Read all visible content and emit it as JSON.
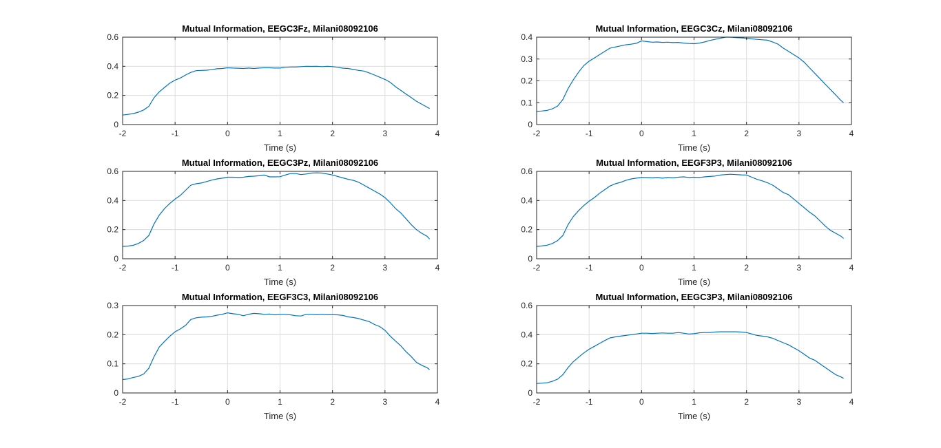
{
  "figure": {
    "background": "#ffffff",
    "line_color": "#0072bd",
    "grid": true
  },
  "chart_data": [
    {
      "type": "line",
      "title": "Mutual Information, EEGC3Fz, Milani08092106",
      "xlabel": "Time (s)",
      "ylabel": "",
      "xlim": [
        -2,
        4
      ],
      "ylim": [
        0,
        0.6
      ],
      "xticks": [
        "-2",
        "-1",
        "0",
        "1",
        "2",
        "3",
        "4"
      ],
      "yticks": [
        "0",
        "0.2",
        "0.4",
        "0.6"
      ],
      "series": [
        {
          "x": [
            -2.0,
            -1.9,
            -1.8,
            -1.7,
            -1.6,
            -1.5,
            -1.4,
            -1.3,
            -1.2,
            -1.1,
            -1.0,
            -0.9,
            -0.8,
            -0.7,
            -0.6,
            -0.5,
            -0.4,
            -0.3,
            -0.2,
            -0.1,
            0.0,
            0.1,
            0.2,
            0.3,
            0.4,
            0.5,
            0.6,
            0.7,
            0.8,
            0.9,
            1.0,
            1.1,
            1.2,
            1.3,
            1.4,
            1.5,
            1.6,
            1.7,
            1.8,
            1.9,
            2.0,
            2.1,
            2.2,
            2.3,
            2.4,
            2.5,
            2.6,
            2.7,
            2.8,
            2.9,
            3.0,
            3.1,
            3.2,
            3.3,
            3.4,
            3.5,
            3.6,
            3.7,
            3.8,
            3.85
          ],
          "y": [
            0.065,
            0.07,
            0.075,
            0.085,
            0.1,
            0.125,
            0.185,
            0.225,
            0.255,
            0.285,
            0.305,
            0.32,
            0.34,
            0.358,
            0.37,
            0.372,
            0.373,
            0.377,
            0.383,
            0.385,
            0.39,
            0.388,
            0.387,
            0.385,
            0.388,
            0.385,
            0.388,
            0.39,
            0.39,
            0.388,
            0.388,
            0.393,
            0.395,
            0.395,
            0.398,
            0.4,
            0.399,
            0.4,
            0.398,
            0.4,
            0.398,
            0.393,
            0.387,
            0.385,
            0.378,
            0.372,
            0.367,
            0.355,
            0.34,
            0.325,
            0.31,
            0.29,
            0.26,
            0.235,
            0.21,
            0.185,
            0.16,
            0.14,
            0.12,
            0.11
          ]
        }
      ]
    },
    {
      "type": "line",
      "title": "Mutual Information, EEGC3Cz, Milani08092106",
      "xlabel": "Time (s)",
      "ylabel": "",
      "xlim": [
        -2,
        4
      ],
      "ylim": [
        0,
        0.4
      ],
      "xticks": [
        "-2",
        "-1",
        "0",
        "1",
        "2",
        "3",
        "4"
      ],
      "yticks": [
        "0",
        "0.1",
        "0.2",
        "0.3",
        "0.4"
      ],
      "series": [
        {
          "x": [
            -2.0,
            -1.9,
            -1.8,
            -1.7,
            -1.6,
            -1.5,
            -1.4,
            -1.3,
            -1.2,
            -1.1,
            -1.0,
            -0.9,
            -0.8,
            -0.7,
            -0.6,
            -0.5,
            -0.4,
            -0.3,
            -0.2,
            -0.1,
            0.0,
            0.1,
            0.2,
            0.3,
            0.4,
            0.5,
            0.6,
            0.7,
            0.8,
            0.9,
            1.0,
            1.1,
            1.2,
            1.3,
            1.4,
            1.5,
            1.6,
            1.7,
            1.8,
            1.9,
            2.0,
            2.1,
            2.2,
            2.3,
            2.4,
            2.5,
            2.6,
            2.7,
            2.8,
            2.9,
            3.0,
            3.1,
            3.2,
            3.3,
            3.4,
            3.5,
            3.6,
            3.7,
            3.8,
            3.85
          ],
          "y": [
            0.06,
            0.062,
            0.065,
            0.072,
            0.085,
            0.115,
            0.165,
            0.205,
            0.24,
            0.27,
            0.29,
            0.305,
            0.32,
            0.335,
            0.35,
            0.355,
            0.36,
            0.365,
            0.368,
            0.372,
            0.383,
            0.38,
            0.377,
            0.378,
            0.376,
            0.377,
            0.375,
            0.376,
            0.373,
            0.371,
            0.37,
            0.373,
            0.378,
            0.385,
            0.39,
            0.395,
            0.4,
            0.4,
            0.398,
            0.397,
            0.395,
            0.392,
            0.39,
            0.388,
            0.386,
            0.378,
            0.368,
            0.35,
            0.335,
            0.32,
            0.305,
            0.285,
            0.26,
            0.235,
            0.21,
            0.185,
            0.16,
            0.135,
            0.11,
            0.1
          ]
        }
      ]
    },
    {
      "type": "line",
      "title": "Mutual Information, EEGC3Pz, Milani08092106",
      "xlabel": "Time (s)",
      "ylabel": "",
      "xlim": [
        -2,
        4
      ],
      "ylim": [
        0,
        0.6
      ],
      "xticks": [
        "-2",
        "-1",
        "0",
        "1",
        "2",
        "3",
        "4"
      ],
      "yticks": [
        "0",
        "0.2",
        "0.4",
        "0.6"
      ],
      "series": [
        {
          "x": [
            -2.0,
            -1.9,
            -1.8,
            -1.7,
            -1.6,
            -1.5,
            -1.4,
            -1.3,
            -1.2,
            -1.1,
            -1.0,
            -0.9,
            -0.8,
            -0.7,
            -0.6,
            -0.5,
            -0.4,
            -0.3,
            -0.2,
            -0.1,
            0.0,
            0.1,
            0.2,
            0.3,
            0.4,
            0.5,
            0.6,
            0.7,
            0.8,
            0.9,
            1.0,
            1.1,
            1.2,
            1.3,
            1.4,
            1.5,
            1.6,
            1.7,
            1.8,
            1.9,
            2.0,
            2.1,
            2.2,
            2.3,
            2.4,
            2.5,
            2.6,
            2.7,
            2.8,
            2.9,
            3.0,
            3.1,
            3.2,
            3.3,
            3.4,
            3.5,
            3.6,
            3.7,
            3.8,
            3.85
          ],
          "y": [
            0.085,
            0.087,
            0.092,
            0.105,
            0.125,
            0.16,
            0.24,
            0.3,
            0.345,
            0.38,
            0.41,
            0.435,
            0.47,
            0.505,
            0.515,
            0.52,
            0.53,
            0.54,
            0.548,
            0.553,
            0.56,
            0.56,
            0.558,
            0.56,
            0.565,
            0.567,
            0.57,
            0.575,
            0.562,
            0.562,
            0.563,
            0.575,
            0.585,
            0.585,
            0.578,
            0.582,
            0.588,
            0.59,
            0.588,
            0.582,
            0.575,
            0.565,
            0.555,
            0.545,
            0.538,
            0.525,
            0.505,
            0.485,
            0.465,
            0.445,
            0.42,
            0.385,
            0.345,
            0.315,
            0.275,
            0.235,
            0.2,
            0.175,
            0.155,
            0.135
          ]
        }
      ]
    },
    {
      "type": "line",
      "title": "Mutual Information, EEGF3P3, Milani08092106",
      "xlabel": "Time (s)",
      "ylabel": "",
      "xlim": [
        -2,
        4
      ],
      "ylim": [
        0,
        0.6
      ],
      "xticks": [
        "-2",
        "-1",
        "0",
        "1",
        "2",
        "3",
        "4"
      ],
      "yticks": [
        "0",
        "0.2",
        "0.4",
        "0.6"
      ],
      "series": [
        {
          "x": [
            -2.0,
            -1.9,
            -1.8,
            -1.7,
            -1.6,
            -1.5,
            -1.4,
            -1.3,
            -1.2,
            -1.1,
            -1.0,
            -0.9,
            -0.8,
            -0.7,
            -0.6,
            -0.5,
            -0.4,
            -0.3,
            -0.2,
            -0.1,
            0.0,
            0.1,
            0.2,
            0.3,
            0.4,
            0.5,
            0.6,
            0.7,
            0.8,
            0.9,
            1.0,
            1.1,
            1.2,
            1.3,
            1.4,
            1.5,
            1.6,
            1.7,
            1.8,
            1.9,
            2.0,
            2.1,
            2.2,
            2.3,
            2.4,
            2.5,
            2.6,
            2.7,
            2.8,
            2.9,
            3.0,
            3.1,
            3.2,
            3.3,
            3.4,
            3.5,
            3.6,
            3.7,
            3.8,
            3.85
          ],
          "y": [
            0.085,
            0.088,
            0.093,
            0.105,
            0.125,
            0.16,
            0.235,
            0.29,
            0.33,
            0.365,
            0.395,
            0.42,
            0.45,
            0.475,
            0.5,
            0.515,
            0.525,
            0.538,
            0.548,
            0.553,
            0.558,
            0.557,
            0.555,
            0.558,
            0.553,
            0.558,
            0.555,
            0.56,
            0.562,
            0.558,
            0.56,
            0.558,
            0.562,
            0.565,
            0.568,
            0.575,
            0.578,
            0.58,
            0.578,
            0.576,
            0.575,
            0.56,
            0.545,
            0.535,
            0.522,
            0.505,
            0.48,
            0.455,
            0.44,
            0.41,
            0.38,
            0.35,
            0.32,
            0.295,
            0.26,
            0.225,
            0.195,
            0.175,
            0.155,
            0.14
          ]
        }
      ]
    },
    {
      "type": "line",
      "title": "Mutual Information, EEGF3C3, Milani08092106",
      "xlabel": "Time (s)",
      "ylabel": "",
      "xlim": [
        -2,
        4
      ],
      "ylim": [
        0,
        0.3
      ],
      "xticks": [
        "-2",
        "-1",
        "0",
        "1",
        "2",
        "3",
        "4"
      ],
      "yticks": [
        "0",
        "0.1",
        "0.2",
        "0.3"
      ],
      "series": [
        {
          "x": [
            -2.0,
            -1.9,
            -1.8,
            -1.7,
            -1.6,
            -1.5,
            -1.4,
            -1.3,
            -1.2,
            -1.1,
            -1.0,
            -0.9,
            -0.8,
            -0.7,
            -0.6,
            -0.5,
            -0.4,
            -0.3,
            -0.2,
            -0.1,
            0.0,
            0.1,
            0.2,
            0.3,
            0.4,
            0.5,
            0.6,
            0.7,
            0.8,
            0.9,
            1.0,
            1.1,
            1.2,
            1.3,
            1.4,
            1.5,
            1.6,
            1.7,
            1.8,
            1.9,
            2.0,
            2.1,
            2.2,
            2.3,
            2.4,
            2.5,
            2.6,
            2.7,
            2.8,
            2.9,
            3.0,
            3.1,
            3.2,
            3.3,
            3.4,
            3.5,
            3.6,
            3.7,
            3.8,
            3.85
          ],
          "y": [
            0.046,
            0.048,
            0.053,
            0.057,
            0.065,
            0.085,
            0.125,
            0.158,
            0.177,
            0.195,
            0.21,
            0.22,
            0.232,
            0.252,
            0.258,
            0.26,
            0.261,
            0.263,
            0.267,
            0.27,
            0.275,
            0.272,
            0.27,
            0.265,
            0.27,
            0.273,
            0.272,
            0.27,
            0.271,
            0.268,
            0.27,
            0.27,
            0.268,
            0.265,
            0.264,
            0.27,
            0.27,
            0.269,
            0.27,
            0.269,
            0.269,
            0.268,
            0.266,
            0.261,
            0.259,
            0.255,
            0.25,
            0.245,
            0.235,
            0.228,
            0.215,
            0.195,
            0.178,
            0.162,
            0.142,
            0.125,
            0.105,
            0.095,
            0.087,
            0.08
          ]
        }
      ]
    },
    {
      "type": "line",
      "title": "Mutual Information, EEGC3P3, Milani08092106",
      "xlabel": "Time (s)",
      "ylabel": "",
      "xlim": [
        -2,
        4
      ],
      "ylim": [
        0,
        0.6
      ],
      "xticks": [
        "-2",
        "-1",
        "0",
        "1",
        "2",
        "3",
        "4"
      ],
      "yticks": [
        "0",
        "0.2",
        "0.4",
        "0.6"
      ],
      "series": [
        {
          "x": [
            -2.0,
            -1.9,
            -1.8,
            -1.7,
            -1.6,
            -1.5,
            -1.4,
            -1.3,
            -1.2,
            -1.1,
            -1.0,
            -0.9,
            -0.8,
            -0.7,
            -0.6,
            -0.5,
            -0.4,
            -0.3,
            -0.2,
            -0.1,
            0.0,
            0.1,
            0.2,
            0.3,
            0.4,
            0.5,
            0.6,
            0.7,
            0.8,
            0.9,
            1.0,
            1.1,
            1.2,
            1.3,
            1.4,
            1.5,
            1.6,
            1.7,
            1.8,
            1.9,
            2.0,
            2.1,
            2.2,
            2.3,
            2.4,
            2.5,
            2.6,
            2.7,
            2.8,
            2.9,
            3.0,
            3.1,
            3.2,
            3.3,
            3.4,
            3.5,
            3.6,
            3.7,
            3.8,
            3.85
          ],
          "y": [
            0.065,
            0.067,
            0.07,
            0.08,
            0.095,
            0.125,
            0.175,
            0.215,
            0.245,
            0.275,
            0.3,
            0.32,
            0.34,
            0.36,
            0.378,
            0.385,
            0.39,
            0.395,
            0.4,
            0.405,
            0.41,
            0.41,
            0.408,
            0.41,
            0.412,
            0.41,
            0.41,
            0.415,
            0.41,
            0.405,
            0.407,
            0.413,
            0.415,
            0.415,
            0.418,
            0.42,
            0.42,
            0.42,
            0.42,
            0.418,
            0.415,
            0.405,
            0.395,
            0.39,
            0.385,
            0.375,
            0.36,
            0.345,
            0.33,
            0.31,
            0.29,
            0.265,
            0.24,
            0.225,
            0.2,
            0.175,
            0.15,
            0.125,
            0.11,
            0.1
          ]
        }
      ]
    }
  ]
}
